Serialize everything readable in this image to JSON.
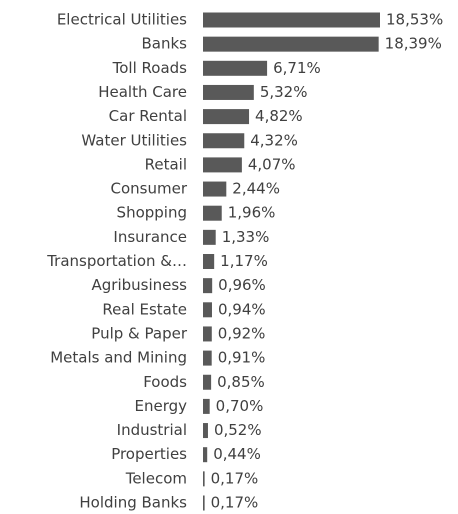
{
  "chart_data": {
    "type": "bar",
    "orientation": "horizontal",
    "categories": [
      "Electrical Utilities",
      "Banks",
      "Toll Roads",
      "Health Care",
      "Car Rental",
      "Water Utilities",
      "Retail",
      "Consumer",
      "Shopping",
      "Insurance",
      "Transportation &…",
      "Agribusiness",
      "Real Estate",
      "Pulp & Paper",
      "Metals and Mining",
      "Foods",
      "Energy",
      "Industrial",
      "Properties",
      "Telecom",
      "Holding Banks"
    ],
    "values": [
      18.53,
      18.39,
      6.71,
      5.32,
      4.82,
      4.32,
      4.07,
      2.44,
      1.96,
      1.33,
      1.17,
      0.96,
      0.94,
      0.92,
      0.91,
      0.85,
      0.7,
      0.52,
      0.44,
      0.17,
      0.17
    ],
    "value_labels": [
      "18,53%",
      "18,39%",
      "6,71%",
      "5,32%",
      "4,82%",
      "4,32%",
      "4,07%",
      "2,44%",
      "1,96%",
      "1,33%",
      "1,17%",
      "0,96%",
      "0,94%",
      "0,92%",
      "0,91%",
      "0,85%",
      "0,70%",
      "0,52%",
      "0,44%",
      "0,17%",
      "0,17%"
    ],
    "color": "#595959"
  }
}
